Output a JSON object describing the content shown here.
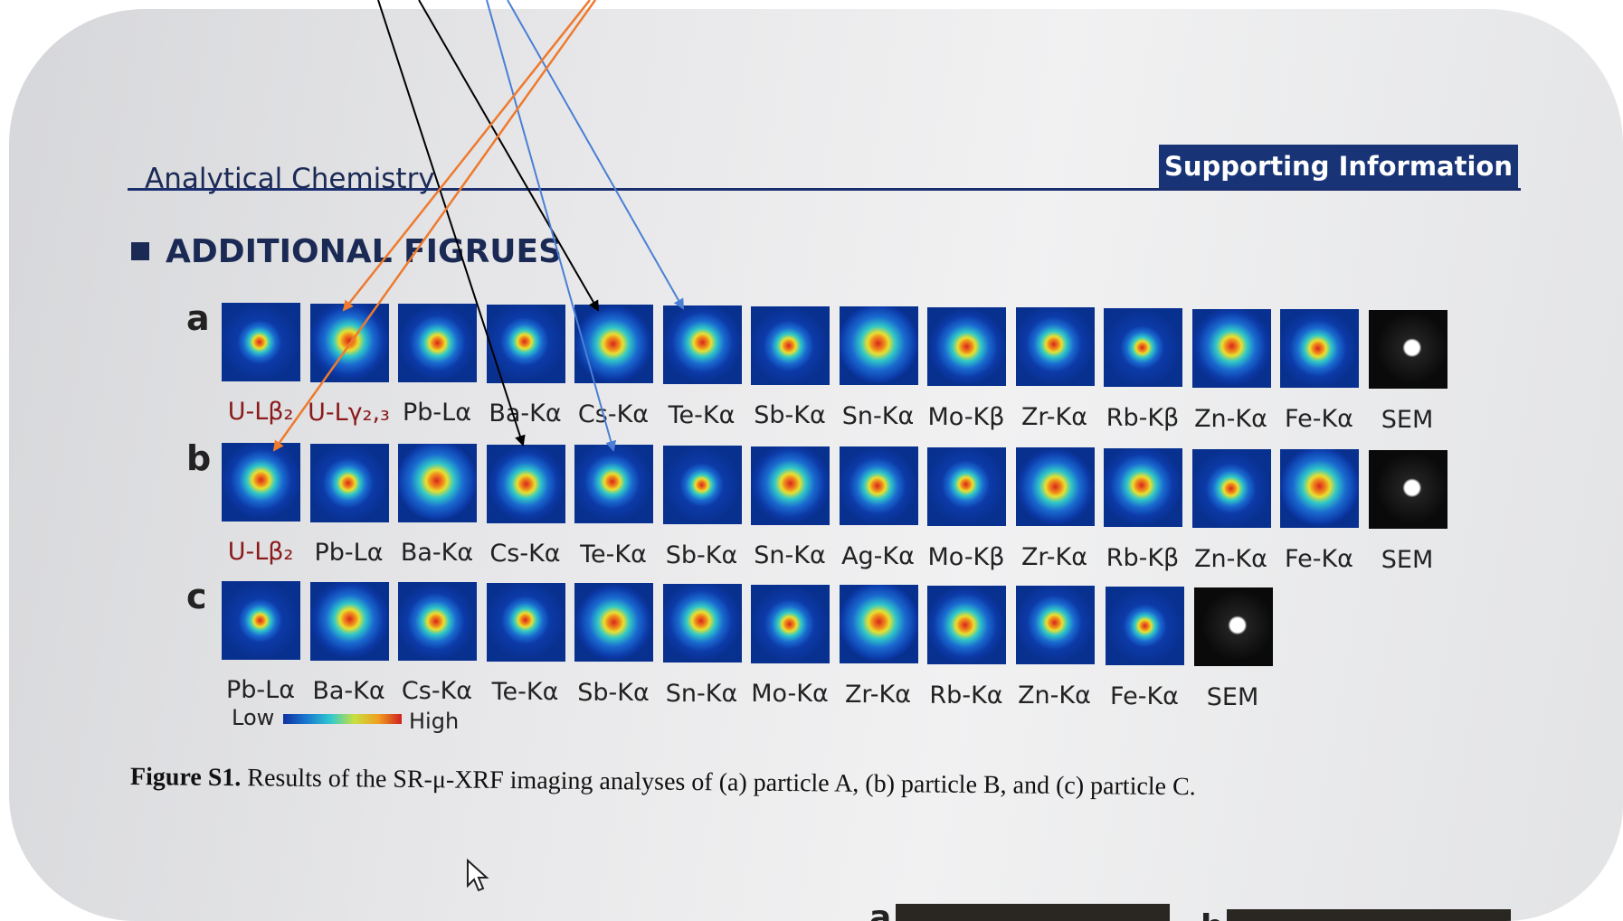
{
  "header": {
    "journal": "Analytical Chemistry",
    "tag": "Supporting Information"
  },
  "section_title": "ADDITIONAL FIGRUES",
  "figure": {
    "rows": [
      {
        "label": "a",
        "panels": [
          {
            "label": "U-Lβ₂",
            "color": "#8b1a1a"
          },
          {
            "label": "U-Lγ₂,₃",
            "color": "#8b1a1a"
          },
          {
            "label": "Pb-Lα"
          },
          {
            "label": "Ba-Kα"
          },
          {
            "label": "Cs-Kα"
          },
          {
            "label": "Te-Kα"
          },
          {
            "label": "Sb-Kα"
          },
          {
            "label": "Sn-Kα"
          },
          {
            "label": "Mo-Kβ"
          },
          {
            "label": "Zr-Kα"
          },
          {
            "label": "Rb-Kβ"
          },
          {
            "label": "Zn-Kα"
          },
          {
            "label": "Fe-Kα"
          },
          {
            "label": "SEM"
          }
        ]
      },
      {
        "label": "b",
        "panels": [
          {
            "label": "U-Lβ₂",
            "color": "#8b1a1a"
          },
          {
            "label": "Pb-Lα"
          },
          {
            "label": "Ba-Kα"
          },
          {
            "label": "Cs-Kα"
          },
          {
            "label": "Te-Kα"
          },
          {
            "label": "Sb-Kα"
          },
          {
            "label": "Sn-Kα"
          },
          {
            "label": "Ag-Kα"
          },
          {
            "label": "Mo-Kβ"
          },
          {
            "label": "Zr-Kα"
          },
          {
            "label": "Rb-Kβ"
          },
          {
            "label": "Zn-Kα"
          },
          {
            "label": "Fe-Kα"
          },
          {
            "label": "SEM"
          }
        ]
      },
      {
        "label": "c",
        "panels": [
          {
            "label": "Pb-Lα"
          },
          {
            "label": "Ba-Kα"
          },
          {
            "label": "Cs-Kα"
          },
          {
            "label": "Te-Kα"
          },
          {
            "label": "Sb-Kα"
          },
          {
            "label": "Sn-Kα"
          },
          {
            "label": "Mo-Kα"
          },
          {
            "label": "Zr-Kα"
          },
          {
            "label": "Rb-Kα"
          },
          {
            "label": "Zn-Kα"
          },
          {
            "label": "Fe-Kα"
          },
          {
            "label": "SEM"
          }
        ]
      }
    ],
    "colorbar": {
      "low": "Low",
      "high": "High"
    }
  },
  "caption": {
    "label": "Figure S1.",
    "text": "Results of the SR-μ-XRF imaging analyses of (a) particle A, (b) particle B, and (c) particle C."
  },
  "next_figure": {
    "labels": [
      "a",
      "b"
    ]
  }
}
